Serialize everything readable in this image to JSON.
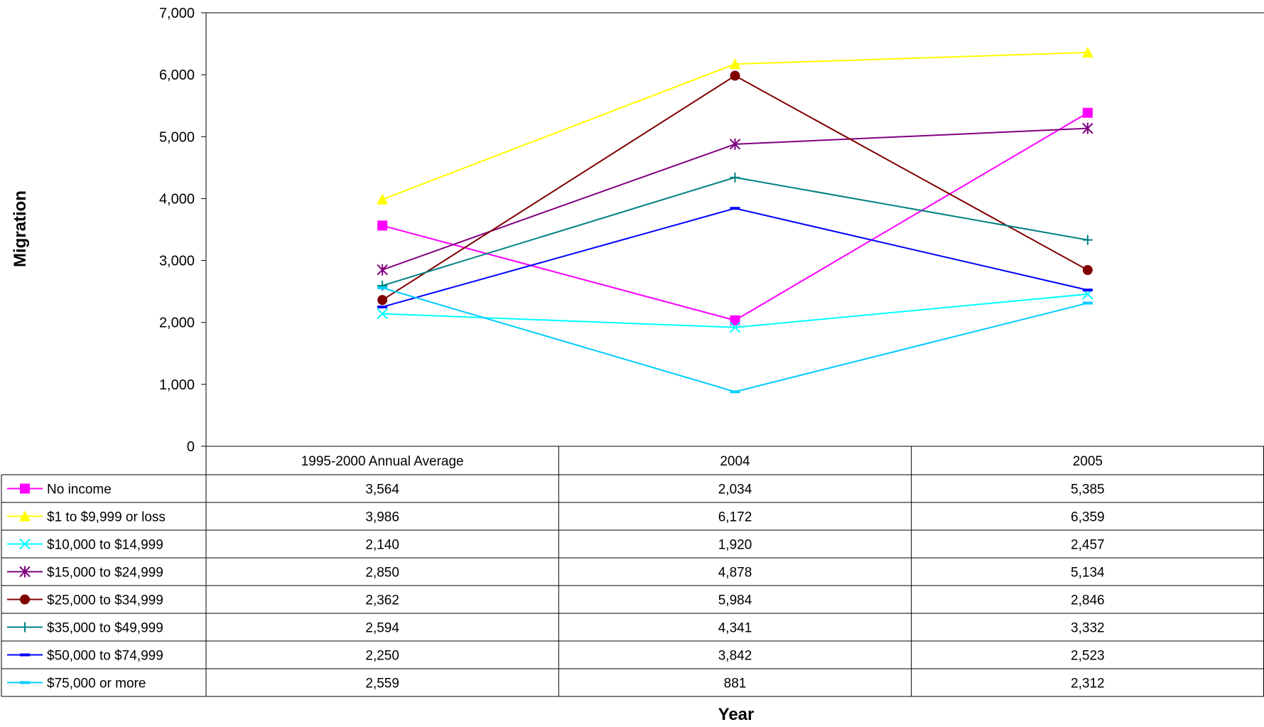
{
  "chart_data": {
    "type": "line",
    "ylabel": "Migration",
    "xlabel": "Year",
    "ylim": [
      0,
      7000
    ],
    "y_ticks": [
      0,
      1000,
      2000,
      3000,
      4000,
      5000,
      6000,
      7000
    ],
    "y_tick_labels": [
      "0",
      "1,000",
      "2,000",
      "3,000",
      "4,000",
      "5,000",
      "6,000",
      "7,000"
    ],
    "categories": [
      "1995-2000 Annual Average",
      "2004",
      "2005"
    ],
    "grid": false,
    "legend": "data-table",
    "series": [
      {
        "name": "No income",
        "color": "#FF00FF",
        "marker": "square",
        "values": [
          3564,
          2034,
          5385
        ],
        "labels": [
          "3,564",
          "2,034",
          "5,385"
        ]
      },
      {
        "name": "$1 to $9,999 or loss",
        "color": "#FFFF00",
        "marker": "triangle",
        "values": [
          3986,
          6172,
          6359
        ],
        "labels": [
          "3,986",
          "6,172",
          "6,359"
        ]
      },
      {
        "name": "$10,000 to $14,999",
        "color": "#00FFFF",
        "marker": "x",
        "values": [
          2140,
          1920,
          2457
        ],
        "labels": [
          "2,140",
          "1,920",
          "2,457"
        ]
      },
      {
        "name": "$15,000 to $24,999",
        "color": "#800080",
        "marker": "star",
        "values": [
          2850,
          4878,
          5134
        ],
        "labels": [
          "2,850",
          "4,878",
          "5,134"
        ]
      },
      {
        "name": "$25,000 to $34,999",
        "color": "#800000",
        "marker": "circle",
        "values": [
          2362,
          5984,
          2846
        ],
        "labels": [
          "2,362",
          "5,984",
          "2,846"
        ]
      },
      {
        "name": "$35,000 to $49,999",
        "color": "#008080",
        "marker": "plus",
        "values": [
          2594,
          4341,
          3332
        ],
        "labels": [
          "2,594",
          "4,341",
          "3,332"
        ]
      },
      {
        "name": "$50,000 to $74,999",
        "color": "#0000FF",
        "marker": "dash",
        "values": [
          2250,
          3842,
          2523
        ],
        "labels": [
          "2,250",
          "3,842",
          "2,523"
        ]
      },
      {
        "name": "$75,000 or more",
        "color": "#00CCFF",
        "marker": "dash",
        "values": [
          2559,
          881,
          2312
        ],
        "labels": [
          "2,559",
          "881",
          "2,312"
        ]
      }
    ]
  }
}
